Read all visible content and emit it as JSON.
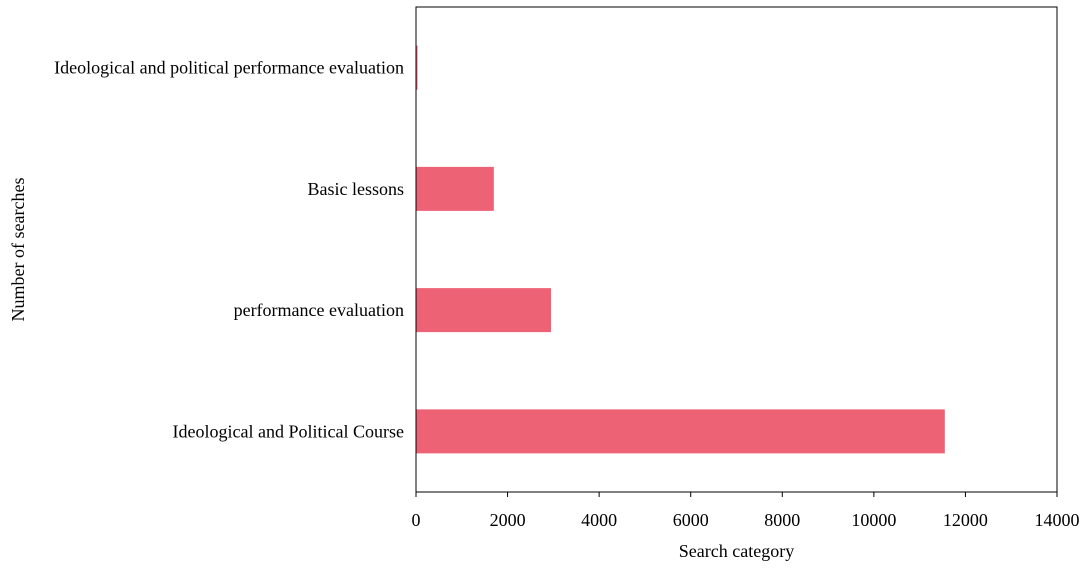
{
  "chart_data": {
    "type": "bar",
    "orientation": "horizontal",
    "title": "",
    "xlabel": "Search category",
    "ylabel": "Number of searches",
    "categories": [
      "Ideological and Political Course",
      "performance evaluation",
      "Basic lessons",
      "Ideological and political performance evaluation"
    ],
    "values": [
      11550,
      2950,
      1700,
      30
    ],
    "xlim": [
      0,
      14000
    ],
    "xticks": [
      0,
      2000,
      4000,
      6000,
      8000,
      10000,
      12000,
      14000
    ],
    "xtick_labels": [
      "0",
      "2000",
      "4000",
      "6000",
      "8000",
      "10000",
      "12000",
      "14000"
    ],
    "grid": false,
    "legend": "none",
    "bar_color": "#ED6275",
    "axis_color": "#000000"
  }
}
